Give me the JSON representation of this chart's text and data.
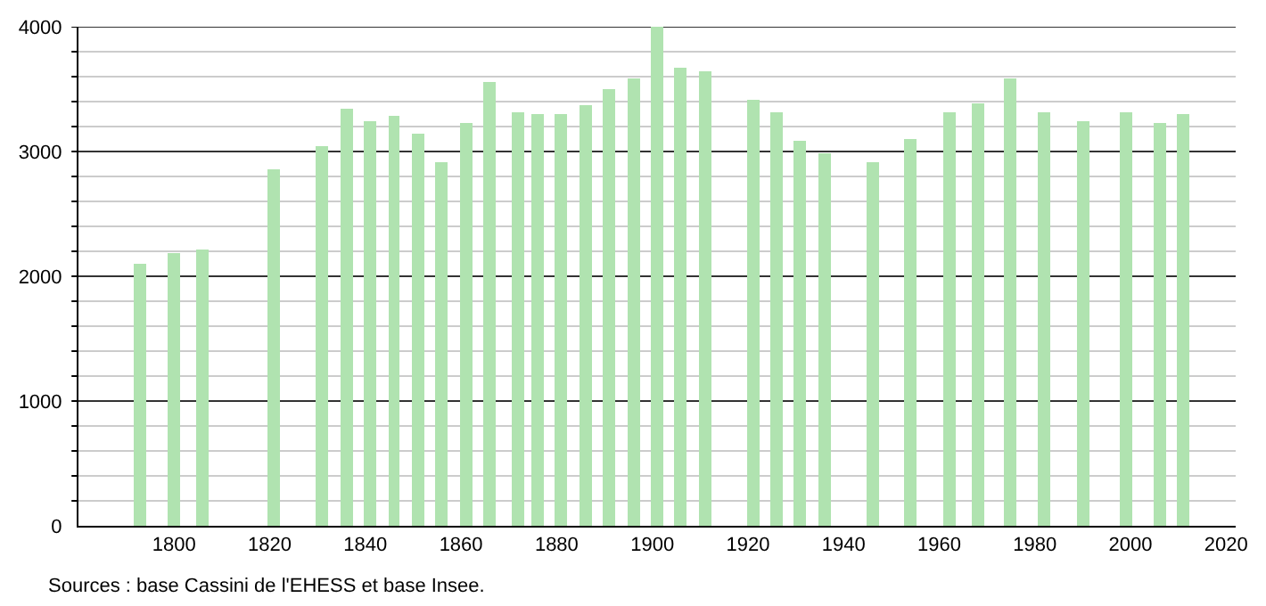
{
  "chart_data": {
    "type": "bar",
    "color": "#b0e3b0",
    "x": [
      1793,
      1800,
      1806,
      1821,
      1831,
      1836,
      1841,
      1846,
      1851,
      1856,
      1861,
      1866,
      1872,
      1876,
      1881,
      1886,
      1891,
      1896,
      1901,
      1906,
      1911,
      1921,
      1926,
      1931,
      1936,
      1946,
      1954,
      1962,
      1968,
      1975,
      1982,
      1990,
      1999,
      2006,
      2011
    ],
    "values": [
      2100,
      2190,
      2210,
      2860,
      3050,
      3350,
      3240,
      3280,
      3150,
      2910,
      3230,
      3560,
      3310,
      3300,
      3300,
      3370,
      3500,
      3590,
      4000,
      3670,
      3650,
      3420,
      3320,
      3090,
      2990,
      2920,
      3100,
      3320,
      3390,
      3590,
      3320,
      3250,
      3320,
      3230,
      3300
    ],
    "xlim": [
      1780,
      2022
    ],
    "xticks": [
      1800,
      1820,
      1840,
      1860,
      1880,
      1900,
      1920,
      1940,
      1960,
      1980,
      2000,
      2020
    ],
    "ylim": [
      0,
      4000
    ],
    "yticks": [
      0,
      {
        "value": 200,
        "label": null
      },
      {
        "value": 400,
        "label": null
      },
      {
        "value": 600,
        "label": null
      },
      {
        "value": 800,
        "label": null
      },
      1000,
      {
        "value": 1200,
        "label": null
      },
      {
        "value": 1400,
        "label": null
      },
      {
        "value": 1600,
        "label": null
      },
      {
        "value": 1800,
        "label": null
      },
      2000,
      {
        "value": 2200,
        "label": null
      },
      {
        "value": 2400,
        "label": null
      },
      {
        "value": 2600,
        "label": null
      },
      {
        "value": 2800,
        "label": null
      },
      3000,
      {
        "value": 3200,
        "label": null
      },
      {
        "value": 3400,
        "label": null
      },
      {
        "value": 3600,
        "label": null
      },
      {
        "value": 3800,
        "label": null
      },
      4000
    ],
    "grid": "y",
    "annotations": [
      "Sources : base Cassini de l'EHESS et base Insee."
    ]
  }
}
